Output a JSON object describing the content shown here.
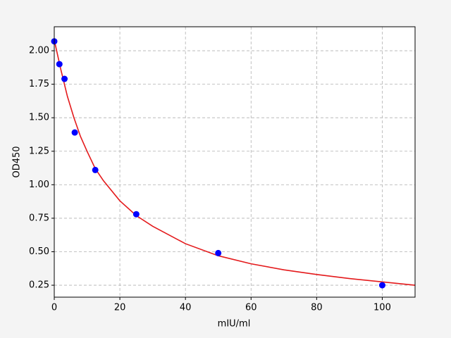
{
  "chart_data": {
    "type": "scatter",
    "xlabel": "mIU/ml",
    "ylabel": "OD450",
    "xlim": [
      0,
      110
    ],
    "ylim": [
      0.161,
      2.179
    ],
    "xticks": [
      0,
      20,
      40,
      60,
      80,
      100
    ],
    "yticks": [
      0.25,
      {
        "value": 0.5,
        "label": "0.50"
      },
      0.75,
      {
        "value": 1.0,
        "label": "1.00"
      },
      1.25,
      {
        "value": 1.5,
        "label": "1.50"
      },
      1.75,
      {
        "value": 2.0,
        "label": "2.00"
      }
    ],
    "grid": true,
    "points": {
      "color": "#0000ff",
      "x": [
        0,
        1.5625,
        3.125,
        6.25,
        12.5,
        25,
        50,
        100
      ],
      "values": [
        2.07,
        1.9,
        1.79,
        1.39,
        1.11,
        0.78,
        0.49,
        0.25
      ]
    },
    "curve": {
      "color": "#e41a1c",
      "x": [
        0,
        2,
        4,
        6,
        8,
        10,
        12.5,
        15,
        20,
        25,
        30,
        40,
        50,
        60,
        70,
        80,
        90,
        100,
        110
      ],
      "values": [
        2.08,
        1.86,
        1.66,
        1.5,
        1.36,
        1.25,
        1.12,
        1.03,
        0.88,
        0.77,
        0.69,
        0.56,
        0.47,
        0.41,
        0.365,
        0.33,
        0.3,
        0.275,
        0.25
      ]
    }
  }
}
